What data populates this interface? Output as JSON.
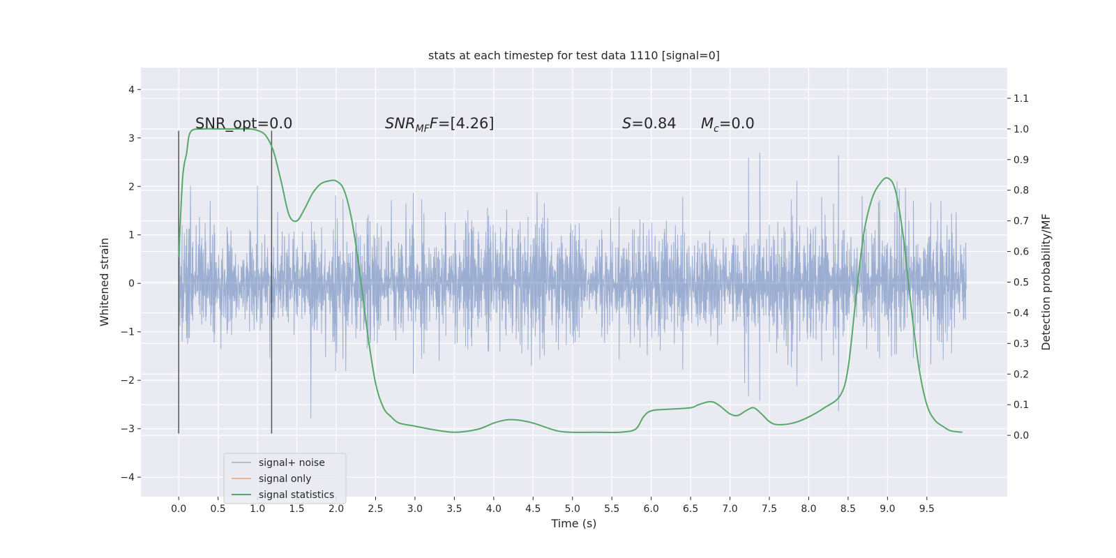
{
  "chart_data": {
    "type": "line",
    "title": "stats at each timestep for test data 1110 [signal=0]",
    "xlabel": "Time (s)",
    "ylabel_left": "Whitened strain",
    "ylabel_right": "Detection probability/MF",
    "xlim": [
      -0.48,
      10.52
    ],
    "ylim_left": [
      -4.4,
      4.45
    ],
    "ylim_right": [
      -0.2,
      1.2
    ],
    "x_ticks": [
      "0.0",
      "0.5",
      "1.0",
      "1.5",
      "2.0",
      "2.5",
      "3.0",
      "3.5",
      "4.0",
      "4.5",
      "5.0",
      "5.5",
      "6.0",
      "6.5",
      "7.0",
      "7.5",
      "8.0",
      "8.5",
      "9.0",
      "9.5"
    ],
    "y_ticks_left": [
      "4",
      "3",
      "2",
      "1",
      "0",
      "−1",
      "−2",
      "−3",
      "−4"
    ],
    "y_ticks_right": [
      "1.1",
      "1.0",
      "0.9",
      "0.8",
      "0.7",
      "0.6",
      "0.5",
      "0.4",
      "0.3",
      "0.2",
      "0.1",
      "0.0"
    ],
    "grid": true,
    "legend_position": "lower-left",
    "vertical_lines_x": [
      0.0,
      1.18
    ],
    "vertical_lines_range": [
      -3.1,
      3.15
    ],
    "annotations": {
      "snr_opt": "SNR_opt=0.0",
      "snr_mf_base": "SNR",
      "snr_mf_sub": "MF",
      "snr_mf_rest": "=[4.26]",
      "s_base": "S",
      "s_rest": "=0.84",
      "mc_base": "M",
      "mc_sub": "c",
      "mc_rest": "=0.0"
    },
    "series": [
      {
        "name": "signal+ noise",
        "color": "#4c72b0",
        "axis": "left",
        "description_range": [
          0.0,
          10.0
        ],
        "envelope_upper": [
          2.0,
          2.1,
          2.3,
          2.5,
          2.4,
          2.3,
          2.4,
          2.5,
          2.6,
          2.5,
          2.8
        ],
        "envelope_lower": [
          -2.0,
          -2.1,
          -2.3,
          -2.4,
          -2.3,
          -2.3,
          -2.4,
          -2.5,
          -2.5,
          -2.4,
          -2.5
        ]
      },
      {
        "name": "signal only",
        "color": "#dd8452",
        "axis": "left",
        "x": [],
        "y": []
      },
      {
        "name": "signal statistics",
        "color": "#55a868",
        "axis": "right",
        "x": [
          0.0,
          0.05,
          0.1,
          0.15,
          0.3,
          0.5,
          0.7,
          0.9,
          1.0,
          1.1,
          1.2,
          1.3,
          1.4,
          1.5,
          1.6,
          1.7,
          1.8,
          1.9,
          2.0,
          2.1,
          2.2,
          2.3,
          2.4,
          2.5,
          2.6,
          2.7,
          2.8,
          3.0,
          3.2,
          3.5,
          3.8,
          4.0,
          4.15,
          4.3,
          4.5,
          4.8,
          5.0,
          5.3,
          5.6,
          5.8,
          5.9,
          6.0,
          6.2,
          6.5,
          6.6,
          6.75,
          6.85,
          7.0,
          7.1,
          7.2,
          7.3,
          7.4,
          7.5,
          7.6,
          7.8,
          8.0,
          8.2,
          8.4,
          8.5,
          8.6,
          8.7,
          8.8,
          8.9,
          9.0,
          9.1,
          9.2,
          9.3,
          9.4,
          9.5,
          9.6,
          9.7,
          9.8,
          9.95
        ],
        "y": [
          0.58,
          0.84,
          0.92,
          0.99,
          1.0,
          1.0,
          1.0,
          1.0,
          0.995,
          0.98,
          0.93,
          0.83,
          0.72,
          0.7,
          0.74,
          0.79,
          0.82,
          0.83,
          0.83,
          0.8,
          0.7,
          0.53,
          0.33,
          0.17,
          0.09,
          0.06,
          0.04,
          0.03,
          0.02,
          0.01,
          0.02,
          0.04,
          0.05,
          0.05,
          0.04,
          0.015,
          0.01,
          0.01,
          0.01,
          0.02,
          0.06,
          0.08,
          0.085,
          0.09,
          0.1,
          0.11,
          0.1,
          0.07,
          0.065,
          0.08,
          0.09,
          0.07,
          0.045,
          0.035,
          0.04,
          0.06,
          0.09,
          0.13,
          0.22,
          0.45,
          0.66,
          0.77,
          0.82,
          0.84,
          0.8,
          0.65,
          0.42,
          0.22,
          0.1,
          0.05,
          0.03,
          0.015,
          0.01
        ]
      }
    ]
  }
}
